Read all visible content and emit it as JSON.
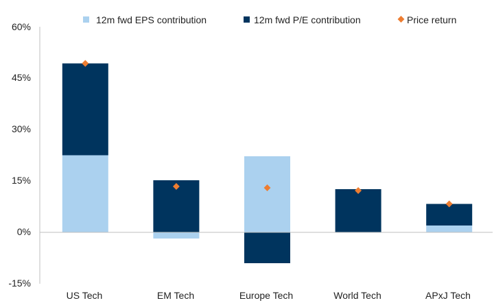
{
  "chart_data": {
    "type": "bar",
    "stacked": true,
    "categories": [
      "US Tech",
      "EM Tech",
      "Europe Tech",
      "World Tech",
      "APxJ Tech"
    ],
    "series": [
      {
        "name": "12m fwd EPS contribution",
        "kind": "bar",
        "color": "#abd1ef",
        "values": [
          22.5,
          -1.8,
          22.2,
          0.0,
          2.0
        ]
      },
      {
        "name": "12m fwd P/E contribution",
        "kind": "bar",
        "color": "#00345e",
        "values": [
          26.8,
          15.2,
          -9.0,
          12.6,
          6.3
        ]
      },
      {
        "name": "Price return",
        "kind": "marker",
        "color": "#ed7d31",
        "values": [
          49.3,
          13.4,
          13.0,
          12.2,
          8.3
        ]
      }
    ],
    "ylim": [
      -15,
      60
    ],
    "yticks": [
      "-15%",
      "0%",
      "15%",
      "30%",
      "45%",
      "60%"
    ],
    "ytick_values": [
      -15,
      0,
      15,
      30,
      45,
      60
    ],
    "legend_position": "top",
    "grid": false
  }
}
